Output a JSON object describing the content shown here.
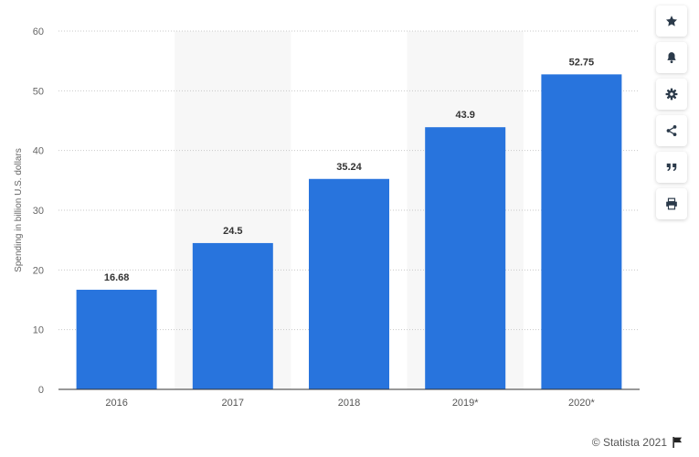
{
  "chart_data": {
    "type": "bar",
    "categories": [
      "2016",
      "2017",
      "2018",
      "2019*",
      "2020*"
    ],
    "values": [
      16.68,
      24.5,
      35.24,
      43.9,
      52.75
    ],
    "value_labels": [
      "16.68",
      "24.5",
      "35.24",
      "43.9",
      "52.75"
    ],
    "title": "",
    "xlabel": "",
    "ylabel": "Spending in billion U.S. dollars",
    "ylim": [
      0,
      60
    ],
    "yticks": [
      0,
      10,
      20,
      30,
      40,
      50,
      60
    ],
    "grid": true,
    "bar_color": "#2874dd",
    "alt_band_color": "#f7f7f7"
  },
  "sidebar": {
    "icons": [
      "star-icon",
      "bell-icon",
      "gear-icon",
      "share-icon",
      "quote-icon",
      "print-icon"
    ]
  },
  "footer": {
    "copyright": "© Statista 2021",
    "icon": "flag-icon"
  }
}
